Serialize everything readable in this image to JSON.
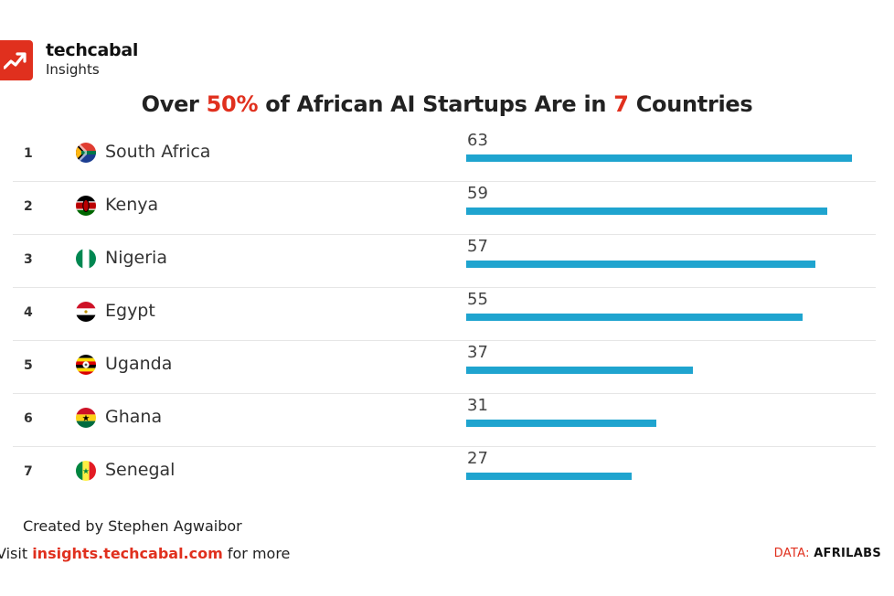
{
  "brand": {
    "name": "techcabal",
    "sub": "Insights"
  },
  "title": {
    "pre": "Over ",
    "hl1": "50%",
    "mid": " of African AI Startups Are in ",
    "hl2": "7",
    "post": " Countries"
  },
  "colors": {
    "bar": "#1fa4cf",
    "accent": "#e0301e"
  },
  "chart_data": {
    "type": "bar",
    "orientation": "horizontal",
    "title": "Over 50% of African AI Startups Are in 7 Countries",
    "categories": [
      "South Africa",
      "Kenya",
      "Nigeria",
      "Egypt",
      "Uganda",
      "Ghana",
      "Senegal"
    ],
    "ranks": [
      "1",
      "2",
      "3",
      "4",
      "5",
      "6",
      "7"
    ],
    "values": [
      63,
      59,
      57,
      55,
      37,
      31,
      27
    ],
    "flags": [
      "south-africa-flag-icon",
      "kenya-flag-icon",
      "nigeria-flag-icon",
      "egypt-flag-icon",
      "uganda-flag-icon",
      "ghana-flag-icon",
      "senegal-flag-icon"
    ],
    "xlim": [
      0,
      63
    ],
    "grid": false,
    "legend": "none"
  },
  "footer": {
    "created": "Created by Stephen Agwaibor",
    "visit_pre": "Visit ",
    "visit_link": "insights.techcabal.com",
    "visit_post": " for more",
    "source_label": "DATA: ",
    "source_name": "AFRILABS"
  }
}
